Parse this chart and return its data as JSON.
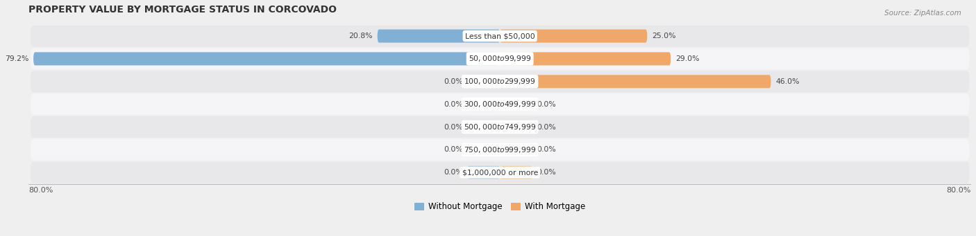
{
  "title": "PROPERTY VALUE BY MORTGAGE STATUS IN CORCOVADO",
  "source": "Source: ZipAtlas.com",
  "categories": [
    "Less than $50,000",
    "$50,000 to $99,999",
    "$100,000 to $299,999",
    "$300,000 to $499,999",
    "$500,000 to $749,999",
    "$750,000 to $999,999",
    "$1,000,000 or more"
  ],
  "without_mortgage": [
    20.8,
    79.2,
    0.0,
    0.0,
    0.0,
    0.0,
    0.0
  ],
  "with_mortgage": [
    25.0,
    29.0,
    46.0,
    0.0,
    0.0,
    0.0,
    0.0
  ],
  "color_without": "#82b0d5",
  "color_with": "#f0a86a",
  "color_without_stub": "#b8d4ea",
  "color_with_stub": "#f5cfa0",
  "xlim_left": -80,
  "xlim_right": 80,
  "stub_size": 5.5,
  "x_left_label": "80.0%",
  "x_right_label": "80.0%",
  "legend_without": "Without Mortgage",
  "legend_with": "With Mortgage",
  "bar_height": 0.58,
  "background_color": "#efefef",
  "row_colors": [
    "#e8e8ea",
    "#f5f5f7"
  ]
}
